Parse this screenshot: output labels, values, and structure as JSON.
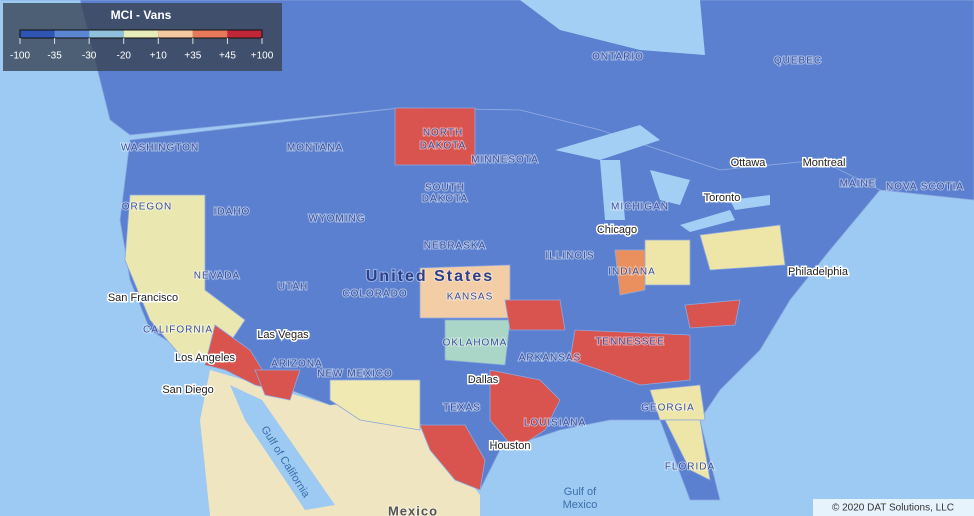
{
  "legend": {
    "title": "MCI - Vans",
    "stops": [
      -100,
      -35,
      -30,
      -20,
      {
        "value": 10,
        "label": "+10"
      },
      {
        "value": 35,
        "label": "+35"
      },
      {
        "value": 45,
        "label": "+45"
      },
      {
        "value": 100,
        "label": "+100"
      }
    ],
    "colors": [
      "#2f55b3",
      "#5a86d2",
      "#8fc0dc",
      "#e8ecb8",
      "#f3c9a0",
      "#e5795a",
      "#c0283a"
    ]
  },
  "labels": {
    "states": [
      "NORTH",
      "DAKOTA",
      "MONTANA",
      "WASHINGTON",
      "OREGON",
      "IDAHO",
      "WYOMING",
      "SOUTH",
      "DAKOTA",
      "NEBRASKA",
      "KANSAS",
      "COLORADO",
      "UTAH",
      "NEVADA",
      "CALIFORNIA",
      "ARIZONA",
      "NEW MEXICO",
      "OKLAHOMA",
      "TEXAS",
      "ARKANSAS",
      "LOUISIANA",
      "TENNESSEE",
      "GEORGIA",
      "FLORIDA",
      "MINNESOTA",
      "MICHIGAN",
      "ILLINOIS",
      "INDIANA",
      "ONTARIO",
      "QUEBEC",
      "MAINE",
      "NOVA SCOTIA"
    ],
    "country": "United States",
    "cities": [
      "Ottawa",
      "Montreal",
      "Toronto",
      "Chicago",
      "Philadelphia",
      "San Francisco",
      "Las Vegas",
      "Los Angeles",
      "San Diego",
      "Dallas",
      "Houston"
    ],
    "water": [
      "Gulf of",
      "Mexico",
      "Gulf of California"
    ],
    "mexico": "Mexico"
  },
  "copyright": "© 2020 DAT Solutions, LLC"
}
